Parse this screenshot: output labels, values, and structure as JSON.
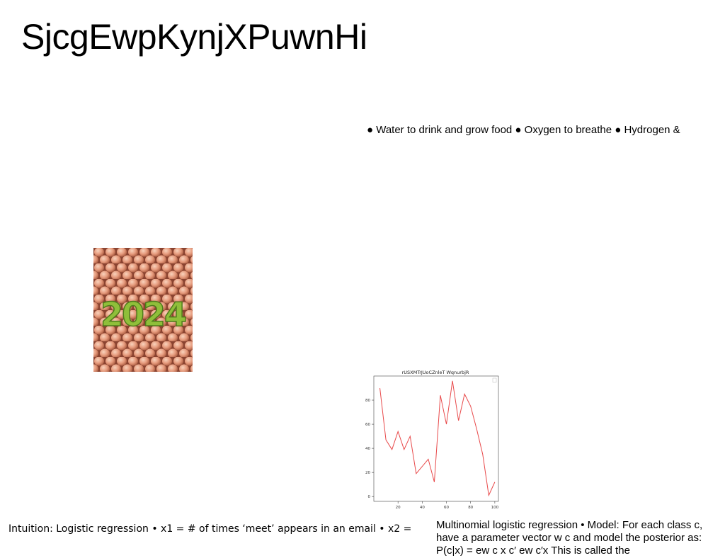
{
  "slide": {
    "title": "SjcgEwpKynjXPuwnHi",
    "bullets_text": "● Water to drink and grow food ● Oxygen to breathe ● Hydrogen &",
    "image_text": "2024",
    "caption_left": "Intuition: Logistic regression • x1 = # of times ‘meet’ appears in an email • x2 =",
    "caption_right": "Multinomial logistic regression • Model: For each class c, have a parameter vector w c and model the posterior as: P(c|x) = ew  c x  c′ ew  c′x  This is called the"
  },
  "colors": {
    "line": "#e8494a",
    "egg": "#e69a7c",
    "text_2024": "#8fbf3a"
  },
  "chart_data": {
    "type": "line",
    "title": "rUSXMTrJUoCZnleT WqnurbjR",
    "x": [
      5,
      10,
      15,
      20,
      25,
      30,
      35,
      40,
      45,
      50,
      55,
      60,
      65,
      70,
      75,
      80,
      85,
      90,
      95,
      100
    ],
    "series": [
      {
        "values": [
          90,
          47,
          39,
          54,
          39,
          50,
          19,
          25,
          31,
          12,
          84,
          60,
          96,
          63,
          85,
          75,
          56,
          35,
          1,
          12
        ]
      }
    ],
    "xlim": [
      0,
      103
    ],
    "ylim": [
      -4,
      100
    ],
    "xticks": [
      "20",
      "40",
      "60",
      "80",
      "100"
    ],
    "yticks": [
      "0",
      "20",
      "40",
      "60",
      "80"
    ],
    "xlabel": "",
    "ylabel": "",
    "grid": false
  }
}
